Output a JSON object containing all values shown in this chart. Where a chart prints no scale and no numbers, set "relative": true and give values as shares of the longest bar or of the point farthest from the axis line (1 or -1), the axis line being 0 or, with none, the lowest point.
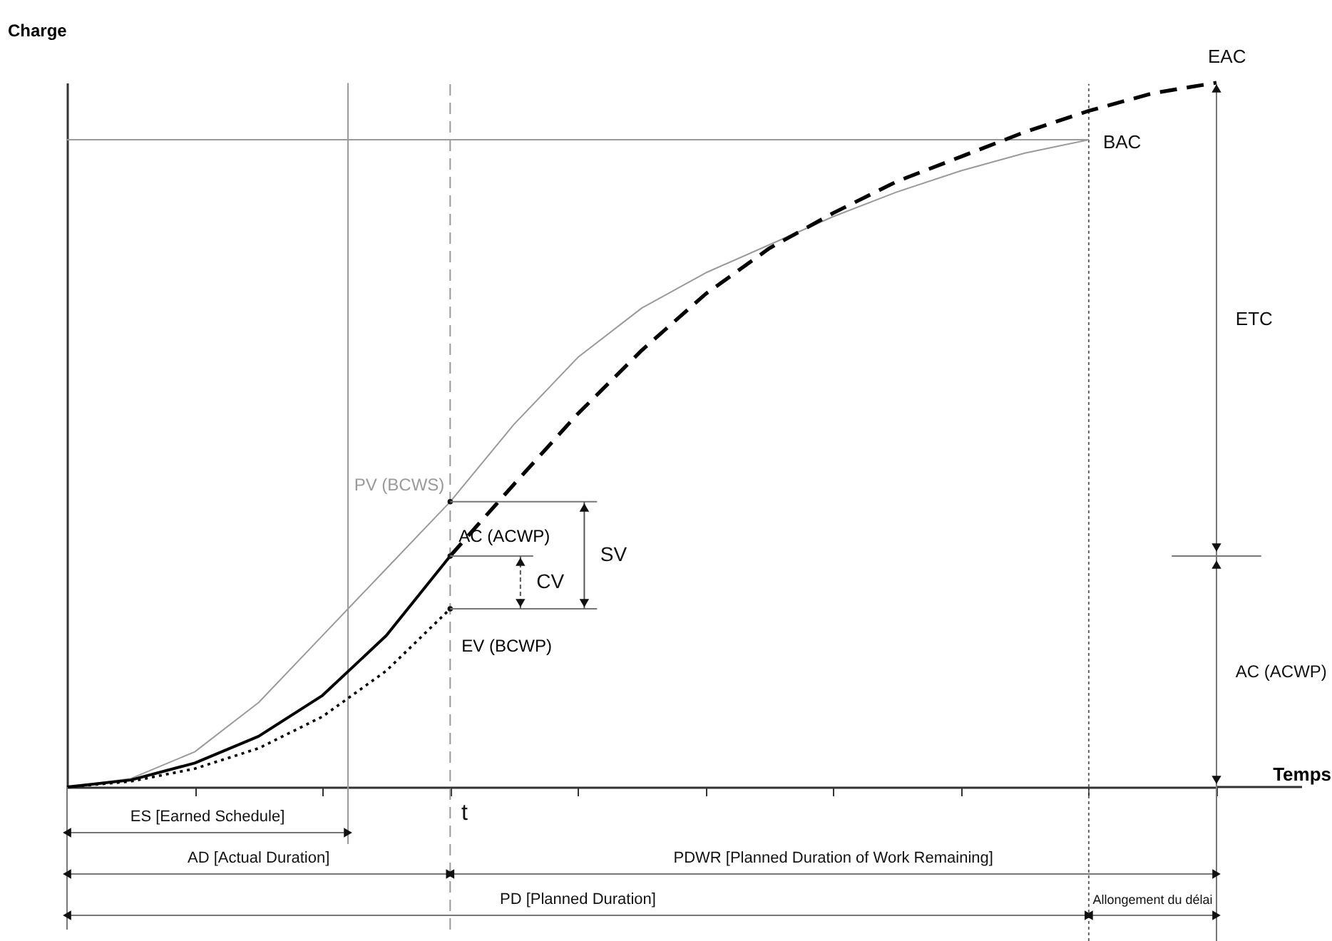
{
  "chart_data": {
    "type": "line",
    "relative": true,
    "xlabel": "Temps",
    "ylabel": "Charge",
    "grid": false,
    "categories": [
      null,
      null,
      null,
      null,
      null,
      null,
      null,
      null,
      null,
      null,
      null,
      null,
      null,
      null,
      null,
      null,
      null,
      null,
      null
    ],
    "series": [
      {
        "name": "PV (BCWS)",
        "color": "#9a9a9a",
        "line_style": "solid",
        "values": [
          0,
          0.012,
          0.05,
          0.12,
          0.215,
          0.31,
          0.405,
          0.515,
          0.61,
          0.68,
          0.73,
          0.77,
          0.81,
          0.845,
          0.875,
          0.9,
          0.919,
          null,
          null
        ]
      },
      {
        "name": "AC (ACWP)",
        "color": "#000000",
        "line_style": "solid",
        "values": [
          0,
          0.01,
          0.034,
          0.072,
          0.13,
          0.215,
          0.328,
          null,
          null,
          null,
          null,
          null,
          null,
          null,
          null,
          null,
          null,
          null,
          null
        ]
      },
      {
        "color": "#000000",
        "line_style": "dashed",
        "values": [
          null,
          null,
          null,
          null,
          null,
          null,
          0.328,
          0.43,
          0.53,
          0.62,
          0.7,
          0.765,
          0.815,
          0.86,
          0.895,
          0.93,
          0.96,
          0.985,
          1
        ]
      },
      {
        "name": "EV (BCWP)",
        "color": "#000000",
        "line_style": "dotted",
        "values": [
          0,
          0.008,
          0.026,
          0.055,
          0.1,
          0.165,
          0.253,
          null,
          null,
          null,
          null,
          null,
          null,
          null,
          null,
          null,
          null,
          null,
          null
        ]
      }
    ],
    "ref_lines": [
      {
        "axis": "y",
        "value": 0.919,
        "label": "BAC",
        "color": "#9a9a9a"
      }
    ],
    "annotations": [
      "EAC",
      "t",
      "SV",
      "CV",
      "ETC",
      "AC (ACWP)",
      "ES [Earned Schedule]",
      "AD [Actual Duration]",
      "PDWR [Planned Duration of Work Remaining]",
      "PD [Planned Duration]",
      "Allongement du délai"
    ]
  }
}
